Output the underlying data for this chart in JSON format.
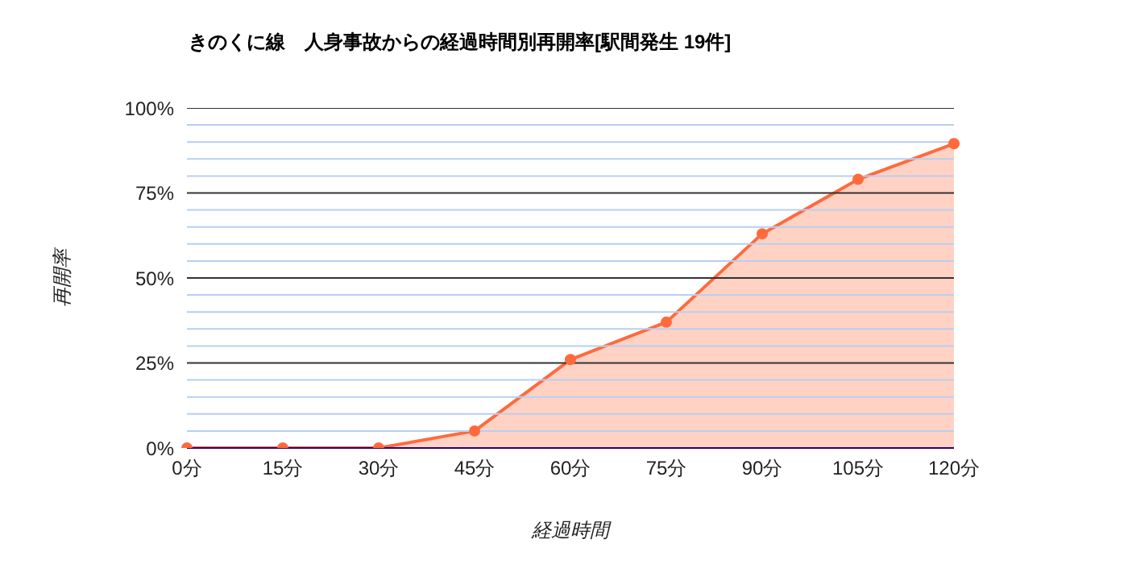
{
  "chart_data": {
    "type": "area",
    "title": "きのくに線　人身事故からの経過時間別再開率[駅間発生 19件]",
    "xlabel": "経過時間",
    "ylabel": "再開率",
    "categories": [
      "0分",
      "15分",
      "30分",
      "45分",
      "60分",
      "75分",
      "90分",
      "105分",
      "120分"
    ],
    "series": [
      {
        "color": "#ff6a3d",
        "values": [
          0,
          0,
          0,
          5,
          26,
          37,
          63,
          79,
          89.5
        ]
      }
    ],
    "ylim": [
      0,
      100
    ],
    "yticks": [
      {
        "value": 0,
        "label": "0%"
      },
      {
        "value": 5,
        "label": null
      },
      {
        "value": 10,
        "label": null
      },
      {
        "value": 15,
        "label": null
      },
      {
        "value": 20,
        "label": null
      },
      {
        "value": 25,
        "label": "25%"
      },
      {
        "value": 30,
        "label": null
      },
      {
        "value": 35,
        "label": null
      },
      {
        "value": 40,
        "label": null
      },
      {
        "value": 45,
        "label": null
      },
      {
        "value": 50,
        "label": "50%"
      },
      {
        "value": 55,
        "label": null
      },
      {
        "value": 60,
        "label": null
      },
      {
        "value": 65,
        "label": null
      },
      {
        "value": 70,
        "label": null
      },
      {
        "value": 75,
        "label": "75%"
      },
      {
        "value": 80,
        "label": null
      },
      {
        "value": 85,
        "label": null
      },
      {
        "value": 90,
        "label": null
      },
      {
        "value": 95,
        "label": null
      },
      {
        "value": 100,
        "label": "100%"
      }
    ],
    "grid": "y",
    "marker": "circle"
  }
}
